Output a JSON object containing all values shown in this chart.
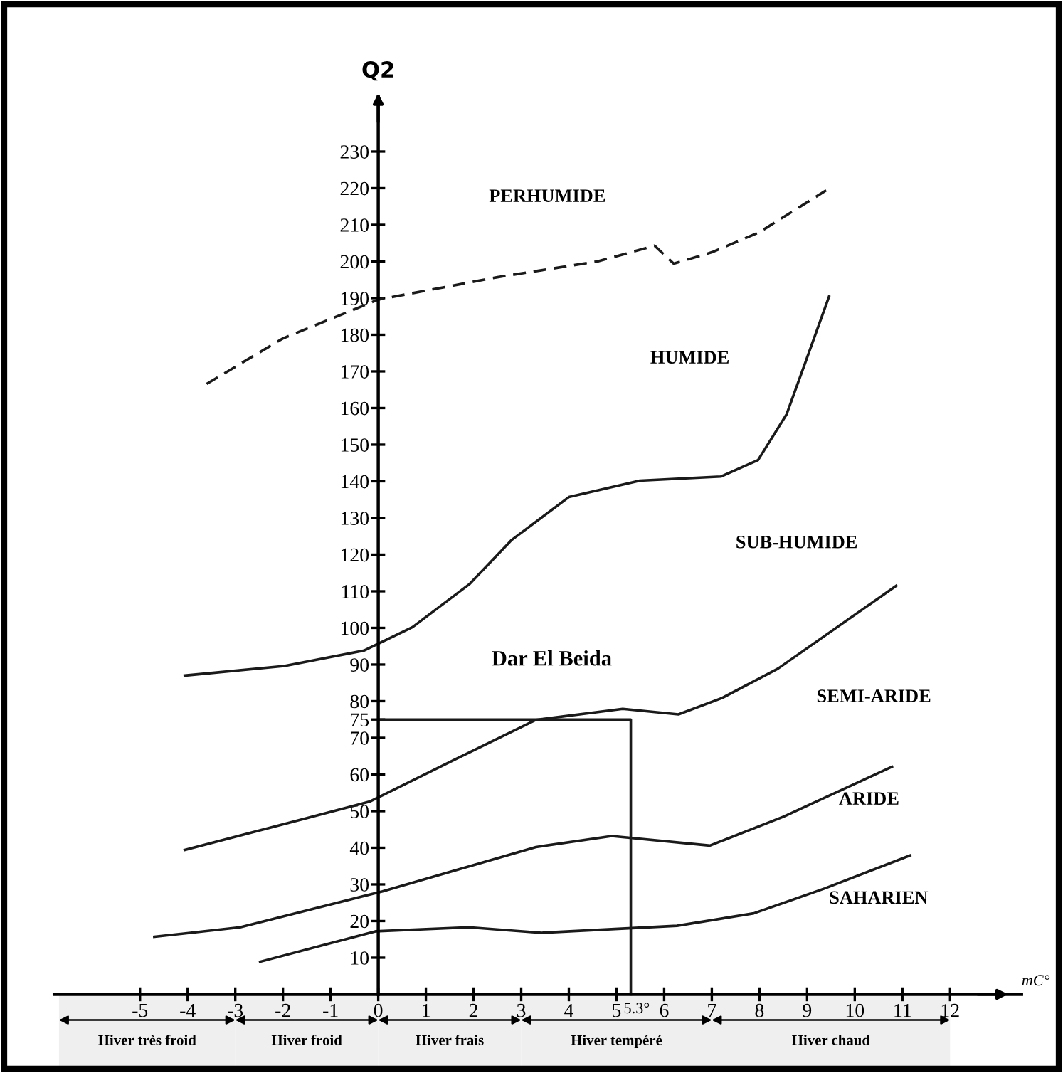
{
  "chart_data": {
    "type": "line",
    "ylabel": "Q2",
    "xlabel": "mC°",
    "xlim": [
      -6.8,
      13.5
    ],
    "ylim": [
      -20,
      245
    ],
    "xticks": [
      -5,
      -4,
      -3,
      -2,
      -1,
      0,
      1,
      2,
      3,
      4,
      5,
      6,
      7,
      8,
      9,
      10,
      11,
      12
    ],
    "yticks": [
      10,
      20,
      30,
      40,
      50,
      60,
      70,
      75,
      80,
      90,
      100,
      110,
      120,
      130,
      140,
      150,
      160,
      170,
      180,
      190,
      200,
      210,
      220,
      230
    ],
    "grid": false,
    "series": [
      {
        "color": "#1a1a1a",
        "line_style": "dashed",
        "x": [
          -3.6,
          -2.0,
          0,
          2.5,
          4.6,
          5.8,
          6.2,
          7.0,
          8.0,
          9.4
        ],
        "values": [
          166.6,
          179,
          189.6,
          195.7,
          200,
          204.3,
          199.4,
          202.5,
          208,
          219.4
        ]
      },
      {
        "color": "#1a1a1a",
        "x": [
          -4.06,
          -1.97,
          -0.3,
          0.72,
          1.91,
          2.8,
          4.0,
          5.49,
          7.19,
          7.97,
          8.57,
          8.99,
          9.46
        ],
        "values": [
          87,
          89.6,
          93.8,
          100.2,
          111.9,
          124,
          135.7,
          140.2,
          141.3,
          145.8,
          158.3,
          173.4,
          190.4
        ]
      },
      {
        "color": "#1a1a1a",
        "x": [
          -4.06,
          -1.61,
          -0.18,
          1.64,
          3.31,
          5.13,
          6.3,
          7.22,
          8.39,
          10.87
        ],
        "values": [
          39.4,
          47.7,
          52.6,
          64.3,
          74.9,
          77.9,
          76.4,
          80.9,
          88.9,
          111.5
        ]
      },
      {
        "color": "#1a1a1a",
        "x": [
          -4.7,
          -2.9,
          0.09,
          3.31,
          4.9,
          6.96,
          8.51,
          10.78
        ],
        "values": [
          15.7,
          18.3,
          28.1,
          40.2,
          43.2,
          40.6,
          48.5,
          62.1
        ]
      },
      {
        "color": "#1a1a1a",
        "x": [
          -2.48,
          -0.06,
          1.9,
          3.43,
          6.27,
          7.88,
          9.37,
          11.16
        ],
        "values": [
          8.9,
          17.2,
          18.3,
          16.8,
          18.7,
          22.1,
          28.9,
          37.9
        ]
      },
      {
        "color": "#1a1a1a",
        "x": [
          0,
          5.3,
          5.3
        ],
        "values": [
          75,
          75,
          0
        ]
      }
    ],
    "bands": [
      {
        "axis": "x",
        "from": -6.7,
        "to": -3,
        "label": "Hiver très froid"
      },
      {
        "axis": "x",
        "from": -3,
        "to": 0,
        "label": "Hiver froid"
      },
      {
        "axis": "x",
        "from": 0,
        "to": 3,
        "label": "Hiver frais"
      },
      {
        "axis": "x",
        "from": 3,
        "to": 7,
        "label": "Hiver tempéré"
      },
      {
        "axis": "x",
        "from": 7,
        "to": 12,
        "label": "Hiver chaud"
      }
    ],
    "annotations": [
      "PERHUMIDE",
      "HUMIDE",
      "SUB-HUMIDE",
      "SEMI-ARIDE",
      "ARIDE",
      "SAHARIEN",
      {
        "text": "Dar El Beida",
        "x": 5.3,
        "y": 75
      },
      {
        "text": "5.3°",
        "x": 5.3,
        "y": 0
      }
    ]
  }
}
